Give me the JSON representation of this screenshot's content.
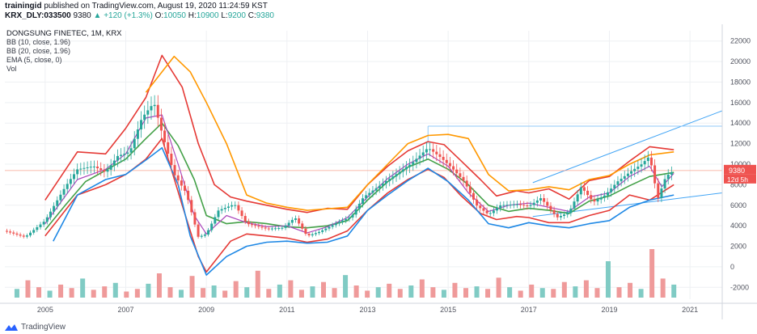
{
  "header": {
    "publisher": "trainingid",
    "published_text": "published on TradingView.com, August 19, 2020 11:24:59 KST",
    "symbol": "KRX_DLY:033500",
    "last": "9380",
    "change": "▲ +120 (+1.3%)",
    "o_label": "O:",
    "o_value": "10050",
    "h_label": "H:",
    "h_value": "10900",
    "l_label": "L:",
    "l_value": "9200",
    "c_label": "C:",
    "c_value": "9380"
  },
  "legend": {
    "title": "DONGSUNG FINETEC, 1M, KRX",
    "items": [
      "BB (10, close, 1.96)",
      "BB (20, close, 1.96)",
      "EMA (5, close, 0)",
      "Vol"
    ]
  },
  "price_label": "9380",
  "countdown_label": "12d 5h",
  "footer": {
    "brand": "TradingView"
  },
  "colors": {
    "up": "#26a69a",
    "down": "#ef5350",
    "bb10_outer": "#e53935",
    "bb20_upper": "#ff9800",
    "bb20_basis": "#43a047",
    "bb20_lower": "#1e88e5",
    "ema": "#ab47bc",
    "channel": "#42a5f5",
    "vol_up": "#80cbc4",
    "vol_down": "#ef9a9a"
  },
  "chart_data": {
    "type": "line",
    "x_tick_labels": [
      "2005",
      "2007",
      "2009",
      "2011",
      "2013",
      "2015",
      "2017",
      "2019",
      "2021"
    ],
    "y_tick_labels": [
      "22000",
      "20000",
      "18000",
      "16000",
      "14000",
      "12000",
      "10000",
      "8000",
      "6000",
      "4000",
      "2000",
      "0",
      "-2000"
    ],
    "ylim": [
      -3000,
      23000
    ],
    "x_range_years": [
      2004.0,
      2021.8
    ],
    "series": [
      {
        "key": "close",
        "points": [
          [
            2004.0,
            3500
          ],
          [
            2004.5,
            2900
          ],
          [
            2005.0,
            4500
          ],
          [
            2005.5,
            7800
          ],
          [
            2005.8,
            9500
          ],
          [
            2006.2,
            9800
          ],
          [
            2006.5,
            9200
          ],
          [
            2006.8,
            10800
          ],
          [
            2007.1,
            11200
          ],
          [
            2007.4,
            14500
          ],
          [
            2007.7,
            16000
          ],
          [
            2007.9,
            13000
          ],
          [
            2008.2,
            9000
          ],
          [
            2008.5,
            7200
          ],
          [
            2008.8,
            2900
          ],
          [
            2009.0,
            3200
          ],
          [
            2009.3,
            5500
          ],
          [
            2009.7,
            6100
          ],
          [
            2010.0,
            4200
          ],
          [
            2010.5,
            3700
          ],
          [
            2010.9,
            3800
          ],
          [
            2011.2,
            4800
          ],
          [
            2011.5,
            3000
          ],
          [
            2011.8,
            3400
          ],
          [
            2012.2,
            4200
          ],
          [
            2012.6,
            4900
          ],
          [
            2012.9,
            6800
          ],
          [
            2013.3,
            7900
          ],
          [
            2013.7,
            9000
          ],
          [
            2014.1,
            10100
          ],
          [
            2014.5,
            11600
          ],
          [
            2014.8,
            10700
          ],
          [
            2015.1,
            9600
          ],
          [
            2015.4,
            8300
          ],
          [
            2015.7,
            6000
          ],
          [
            2016.0,
            5100
          ],
          [
            2016.3,
            6000
          ],
          [
            2016.7,
            6100
          ],
          [
            2017.0,
            5900
          ],
          [
            2017.3,
            6700
          ],
          [
            2017.7,
            4800
          ],
          [
            2018.0,
            5300
          ],
          [
            2018.3,
            7800
          ],
          [
            2018.6,
            6300
          ],
          [
            2018.9,
            7000
          ],
          [
            2019.2,
            8300
          ],
          [
            2019.5,
            9200
          ],
          [
            2019.8,
            10000
          ],
          [
            2020.0,
            10800
          ],
          [
            2020.2,
            6600
          ],
          [
            2020.4,
            8800
          ],
          [
            2020.6,
            9380
          ]
        ]
      },
      {
        "key": "bb10_upper",
        "points": [
          [
            2005.0,
            6500
          ],
          [
            2005.8,
            11200
          ],
          [
            2006.5,
            11000
          ],
          [
            2007.0,
            13500
          ],
          [
            2007.5,
            16500
          ],
          [
            2007.9,
            20600
          ],
          [
            2008.4,
            17500
          ],
          [
            2008.8,
            12000
          ],
          [
            2009.2,
            8000
          ],
          [
            2009.6,
            6800
          ],
          [
            2010.0,
            6400
          ],
          [
            2010.5,
            6000
          ],
          [
            2011.0,
            5600
          ],
          [
            2011.5,
            5300
          ],
          [
            2012.0,
            5700
          ],
          [
            2012.5,
            5600
          ],
          [
            2013.0,
            8000
          ],
          [
            2013.5,
            9800
          ],
          [
            2014.0,
            11300
          ],
          [
            2014.5,
            12200
          ],
          [
            2014.9,
            11900
          ],
          [
            2015.3,
            10400
          ],
          [
            2015.8,
            8500
          ],
          [
            2016.2,
            6900
          ],
          [
            2016.7,
            7400
          ],
          [
            2017.0,
            7200
          ],
          [
            2017.5,
            7600
          ],
          [
            2018.0,
            6600
          ],
          [
            2018.5,
            8400
          ],
          [
            2019.0,
            8800
          ],
          [
            2019.5,
            10300
          ],
          [
            2020.0,
            11700
          ],
          [
            2020.6,
            11400
          ]
        ]
      },
      {
        "key": "bb10_lower",
        "points": [
          [
            2005.0,
            3000
          ],
          [
            2005.8,
            7000
          ],
          [
            2006.5,
            8000
          ],
          [
            2007.0,
            9000
          ],
          [
            2007.5,
            10500
          ],
          [
            2007.9,
            12500
          ],
          [
            2008.4,
            6000
          ],
          [
            2008.8,
            1000
          ],
          [
            2009.0,
            -500
          ],
          [
            2009.6,
            2500
          ],
          [
            2010.0,
            3200
          ],
          [
            2010.5,
            3000
          ],
          [
            2011.0,
            2800
          ],
          [
            2011.5,
            2400
          ],
          [
            2012.0,
            2700
          ],
          [
            2012.5,
            3500
          ],
          [
            2013.0,
            5500
          ],
          [
            2013.5,
            7200
          ],
          [
            2014.0,
            8500
          ],
          [
            2014.5,
            9500
          ],
          [
            2014.9,
            8700
          ],
          [
            2015.3,
            7000
          ],
          [
            2015.8,
            5200
          ],
          [
            2016.2,
            4600
          ],
          [
            2016.7,
            4900
          ],
          [
            2017.0,
            4800
          ],
          [
            2017.5,
            4300
          ],
          [
            2018.0,
            4300
          ],
          [
            2018.5,
            5000
          ],
          [
            2019.0,
            5500
          ],
          [
            2019.5,
            7000
          ],
          [
            2020.0,
            6500
          ],
          [
            2020.6,
            8000
          ]
        ]
      },
      {
        "key": "bb20_upper",
        "points": [
          [
            2007.5,
            17000
          ],
          [
            2008.2,
            20500
          ],
          [
            2008.6,
            19000
          ],
          [
            2009.0,
            16000
          ],
          [
            2009.5,
            12000
          ],
          [
            2010.0,
            7000
          ],
          [
            2010.5,
            6200
          ],
          [
            2011.0,
            5800
          ],
          [
            2011.5,
            5500
          ],
          [
            2012.5,
            5800
          ],
          [
            2013.0,
            8000
          ],
          [
            2013.5,
            10000
          ],
          [
            2014.0,
            12000
          ],
          [
            2014.5,
            12800
          ],
          [
            2015.0,
            12900
          ],
          [
            2015.5,
            12500
          ],
          [
            2016.0,
            9000
          ],
          [
            2016.5,
            7400
          ],
          [
            2017.0,
            7500
          ],
          [
            2017.5,
            7800
          ],
          [
            2018.0,
            7500
          ],
          [
            2018.5,
            8500
          ],
          [
            2019.0,
            8900
          ],
          [
            2019.5,
            10000
          ],
          [
            2020.0,
            10900
          ],
          [
            2020.6,
            11200
          ]
        ]
      },
      {
        "key": "bb20_basis",
        "points": [
          [
            2005.0,
            3600
          ],
          [
            2005.5,
            6000
          ],
          [
            2006.0,
            8300
          ],
          [
            2006.5,
            9400
          ],
          [
            2007.0,
            10500
          ],
          [
            2007.5,
            12500
          ],
          [
            2007.9,
            14000
          ],
          [
            2008.3,
            11800
          ],
          [
            2008.7,
            8500
          ],
          [
            2009.0,
            5000
          ],
          [
            2009.5,
            4200
          ],
          [
            2010.0,
            4400
          ],
          [
            2010.5,
            4200
          ],
          [
            2011.0,
            3900
          ],
          [
            2011.5,
            3800
          ],
          [
            2012.0,
            4000
          ],
          [
            2012.5,
            4500
          ],
          [
            2013.0,
            6500
          ],
          [
            2013.5,
            8300
          ],
          [
            2014.0,
            9700
          ],
          [
            2014.5,
            10500
          ],
          [
            2015.0,
            9500
          ],
          [
            2015.5,
            8000
          ],
          [
            2016.0,
            6000
          ],
          [
            2016.5,
            5400
          ],
          [
            2017.0,
            5700
          ],
          [
            2017.5,
            5500
          ],
          [
            2018.0,
            5200
          ],
          [
            2018.5,
            6400
          ],
          [
            2019.0,
            6900
          ],
          [
            2019.5,
            7900
          ],
          [
            2020.0,
            8800
          ],
          [
            2020.6,
            9200
          ]
        ]
      },
      {
        "key": "bb20_lower",
        "points": [
          [
            2005.2,
            2500
          ],
          [
            2005.8,
            7000
          ],
          [
            2006.5,
            8500
          ],
          [
            2007.0,
            9000
          ],
          [
            2007.5,
            10400
          ],
          [
            2007.9,
            11600
          ],
          [
            2008.3,
            8000
          ],
          [
            2008.6,
            3000
          ],
          [
            2009.0,
            -800
          ],
          [
            2009.5,
            1000
          ],
          [
            2010.0,
            2000
          ],
          [
            2010.5,
            2400
          ],
          [
            2011.0,
            2500
          ],
          [
            2011.5,
            2300
          ],
          [
            2012.0,
            2400
          ],
          [
            2012.5,
            3000
          ],
          [
            2013.0,
            5500
          ],
          [
            2013.5,
            7000
          ],
          [
            2014.0,
            8400
          ],
          [
            2014.5,
            9600
          ],
          [
            2015.0,
            8300
          ],
          [
            2015.5,
            6500
          ],
          [
            2016.0,
            4200
          ],
          [
            2016.5,
            3800
          ],
          [
            2017.0,
            4300
          ],
          [
            2017.5,
            4000
          ],
          [
            2018.0,
            3800
          ],
          [
            2018.5,
            4200
          ],
          [
            2019.0,
            4500
          ],
          [
            2019.5,
            5800
          ],
          [
            2020.0,
            6500
          ],
          [
            2020.6,
            7000
          ]
        ]
      },
      {
        "key": "ema",
        "points": [
          [
            2005.0,
            4200
          ],
          [
            2005.8,
            8500
          ],
          [
            2006.5,
            9500
          ],
          [
            2007.0,
            11000
          ],
          [
            2007.5,
            14500
          ],
          [
            2007.9,
            14800
          ],
          [
            2008.3,
            10000
          ],
          [
            2008.7,
            5000
          ],
          [
            2009.0,
            3200
          ],
          [
            2009.5,
            5000
          ],
          [
            2010.0,
            4300
          ],
          [
            2010.5,
            3900
          ],
          [
            2011.0,
            4000
          ],
          [
            2011.5,
            3300
          ],
          [
            2012.0,
            3900
          ],
          [
            2012.5,
            4800
          ],
          [
            2013.0,
            6800
          ],
          [
            2013.5,
            8600
          ],
          [
            2014.0,
            10000
          ],
          [
            2014.5,
            11000
          ],
          [
            2015.0,
            9800
          ],
          [
            2015.5,
            7200
          ],
          [
            2016.0,
            5400
          ],
          [
            2016.5,
            6000
          ],
          [
            2017.0,
            6200
          ],
          [
            2017.5,
            5800
          ],
          [
            2018.0,
            5400
          ],
          [
            2018.5,
            6800
          ],
          [
            2019.0,
            7200
          ],
          [
            2019.5,
            8800
          ],
          [
            2020.0,
            9800
          ],
          [
            2020.3,
            7800
          ],
          [
            2020.6,
            9100
          ]
        ]
      }
    ],
    "volume": {
      "unit_note": "",
      "values": [
        1,
        2,
        1.2,
        0.8,
        1.5,
        1.1,
        2.2,
        0.9,
        1.3,
        1.7,
        0.7,
        1.0,
        1.6,
        2.8,
        1.2,
        0.9,
        2.5,
        1.1,
        1.4,
        0.8,
        1.9,
        1.2,
        3.1,
        1.0,
        1.5,
        2.0,
        0.9,
        1.3,
        1.8,
        1.1,
        2.6,
        1.4,
        0.8,
        1.2,
        1.6,
        1.0,
        1.4,
        2.1,
        1.2,
        0.9,
        1.7,
        1.1,
        1.3,
        1.0,
        2.3,
        1.2,
        0.8,
        1.5,
        1.1,
        1.0,
        1.8,
        1.3,
        2.0,
        1.1,
        4.2,
        1.2,
        1.7,
        1.0,
        5.6,
        2.2,
        1.5
      ]
    }
  }
}
